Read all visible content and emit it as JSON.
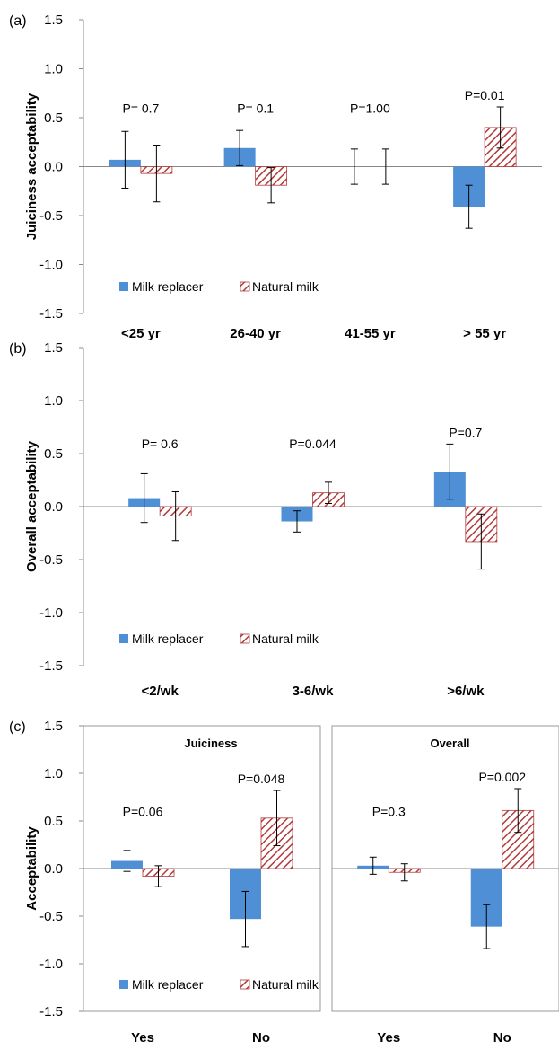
{
  "colors": {
    "milk_replacer": "#4f8fd6",
    "natural_milk_stripe": "#b23a3a",
    "error_bar": "#000000",
    "frame": "#999999"
  },
  "chart_data": [
    {
      "panel_label": "(a)",
      "type": "bar",
      "ylabel": "Juiciness acceptability",
      "ylim": [
        -1.5,
        1.5
      ],
      "yticks": [
        "1.5",
        "1.0",
        "0.5",
        "0.0",
        "-0.5",
        "-1.0",
        "-1.5"
      ],
      "categories": [
        "<25 yr",
        "26-40 yr",
        "41-55 yr",
        "> 55 yr"
      ],
      "p_labels": [
        "P= 0.7",
        "P= 0.1",
        "P=1.00",
        "P=0.01"
      ],
      "legend": {
        "position": "bottom-left",
        "entries": [
          "Milk replacer",
          "Natural milk"
        ]
      },
      "series": [
        {
          "name": "Milk replacer",
          "values": [
            0.07,
            0.19,
            0.0,
            -0.41
          ],
          "err": [
            0.29,
            0.18,
            0.18,
            0.22
          ]
        },
        {
          "name": "Natural milk",
          "values": [
            -0.07,
            -0.19,
            0.0,
            0.4
          ],
          "err": [
            0.29,
            0.18,
            0.18,
            0.21
          ]
        }
      ]
    },
    {
      "panel_label": "(b)",
      "type": "bar",
      "ylabel": "Overall acceptability",
      "ylim": [
        -1.5,
        1.5
      ],
      "yticks": [
        "1.5",
        "1.0",
        "0.5",
        "0.0",
        "-0.5",
        "-1.0",
        "-1.5"
      ],
      "categories": [
        "<2/wk",
        "3-6/wk",
        ">6/wk"
      ],
      "p_labels": [
        "P= 0.6",
        "P=0.044",
        "P=0.7"
      ],
      "legend": {
        "position": "bottom-left",
        "entries": [
          "Milk replacer",
          "Natural milk"
        ]
      },
      "series": [
        {
          "name": "Milk replacer",
          "values": [
            0.08,
            -0.14,
            0.33
          ],
          "err": [
            0.23,
            0.1,
            0.26
          ]
        },
        {
          "name": "Natural milk",
          "values": [
            -0.09,
            0.13,
            -0.33
          ],
          "err": [
            0.23,
            0.1,
            0.26
          ]
        }
      ]
    },
    {
      "panel_label": "(c)",
      "type": "bar",
      "ylabel": "Acceptability",
      "ylim": [
        -1.5,
        1.5
      ],
      "yticks": [
        "1.5",
        "1.0",
        "0.5",
        "0.0",
        "-0.5",
        "-1.0",
        "-1.5"
      ],
      "legend": {
        "position": "bottom-left",
        "entries": [
          "Milk replacer",
          "Natural milk"
        ]
      },
      "subplots": [
        {
          "title": "Juiciness",
          "categories": [
            "Yes",
            "No"
          ],
          "p_labels": [
            "P=0.06",
            "P=0.048"
          ],
          "series": [
            {
              "name": "Milk replacer",
              "values": [
                0.08,
                -0.53
              ],
              "err": [
                0.11,
                0.29
              ]
            },
            {
              "name": "Natural milk",
              "values": [
                -0.08,
                0.53
              ],
              "err": [
                0.11,
                0.29
              ]
            }
          ]
        },
        {
          "title": "Overall",
          "categories": [
            "Yes",
            "No"
          ],
          "p_labels": [
            "P=0.3",
            "P=0.002"
          ],
          "series": [
            {
              "name": "Milk replacer",
              "values": [
                0.03,
                -0.61
              ],
              "err": [
                0.09,
                0.23
              ]
            },
            {
              "name": "Natural milk",
              "values": [
                -0.04,
                0.61
              ],
              "err": [
                0.09,
                0.23
              ]
            }
          ]
        }
      ]
    }
  ]
}
